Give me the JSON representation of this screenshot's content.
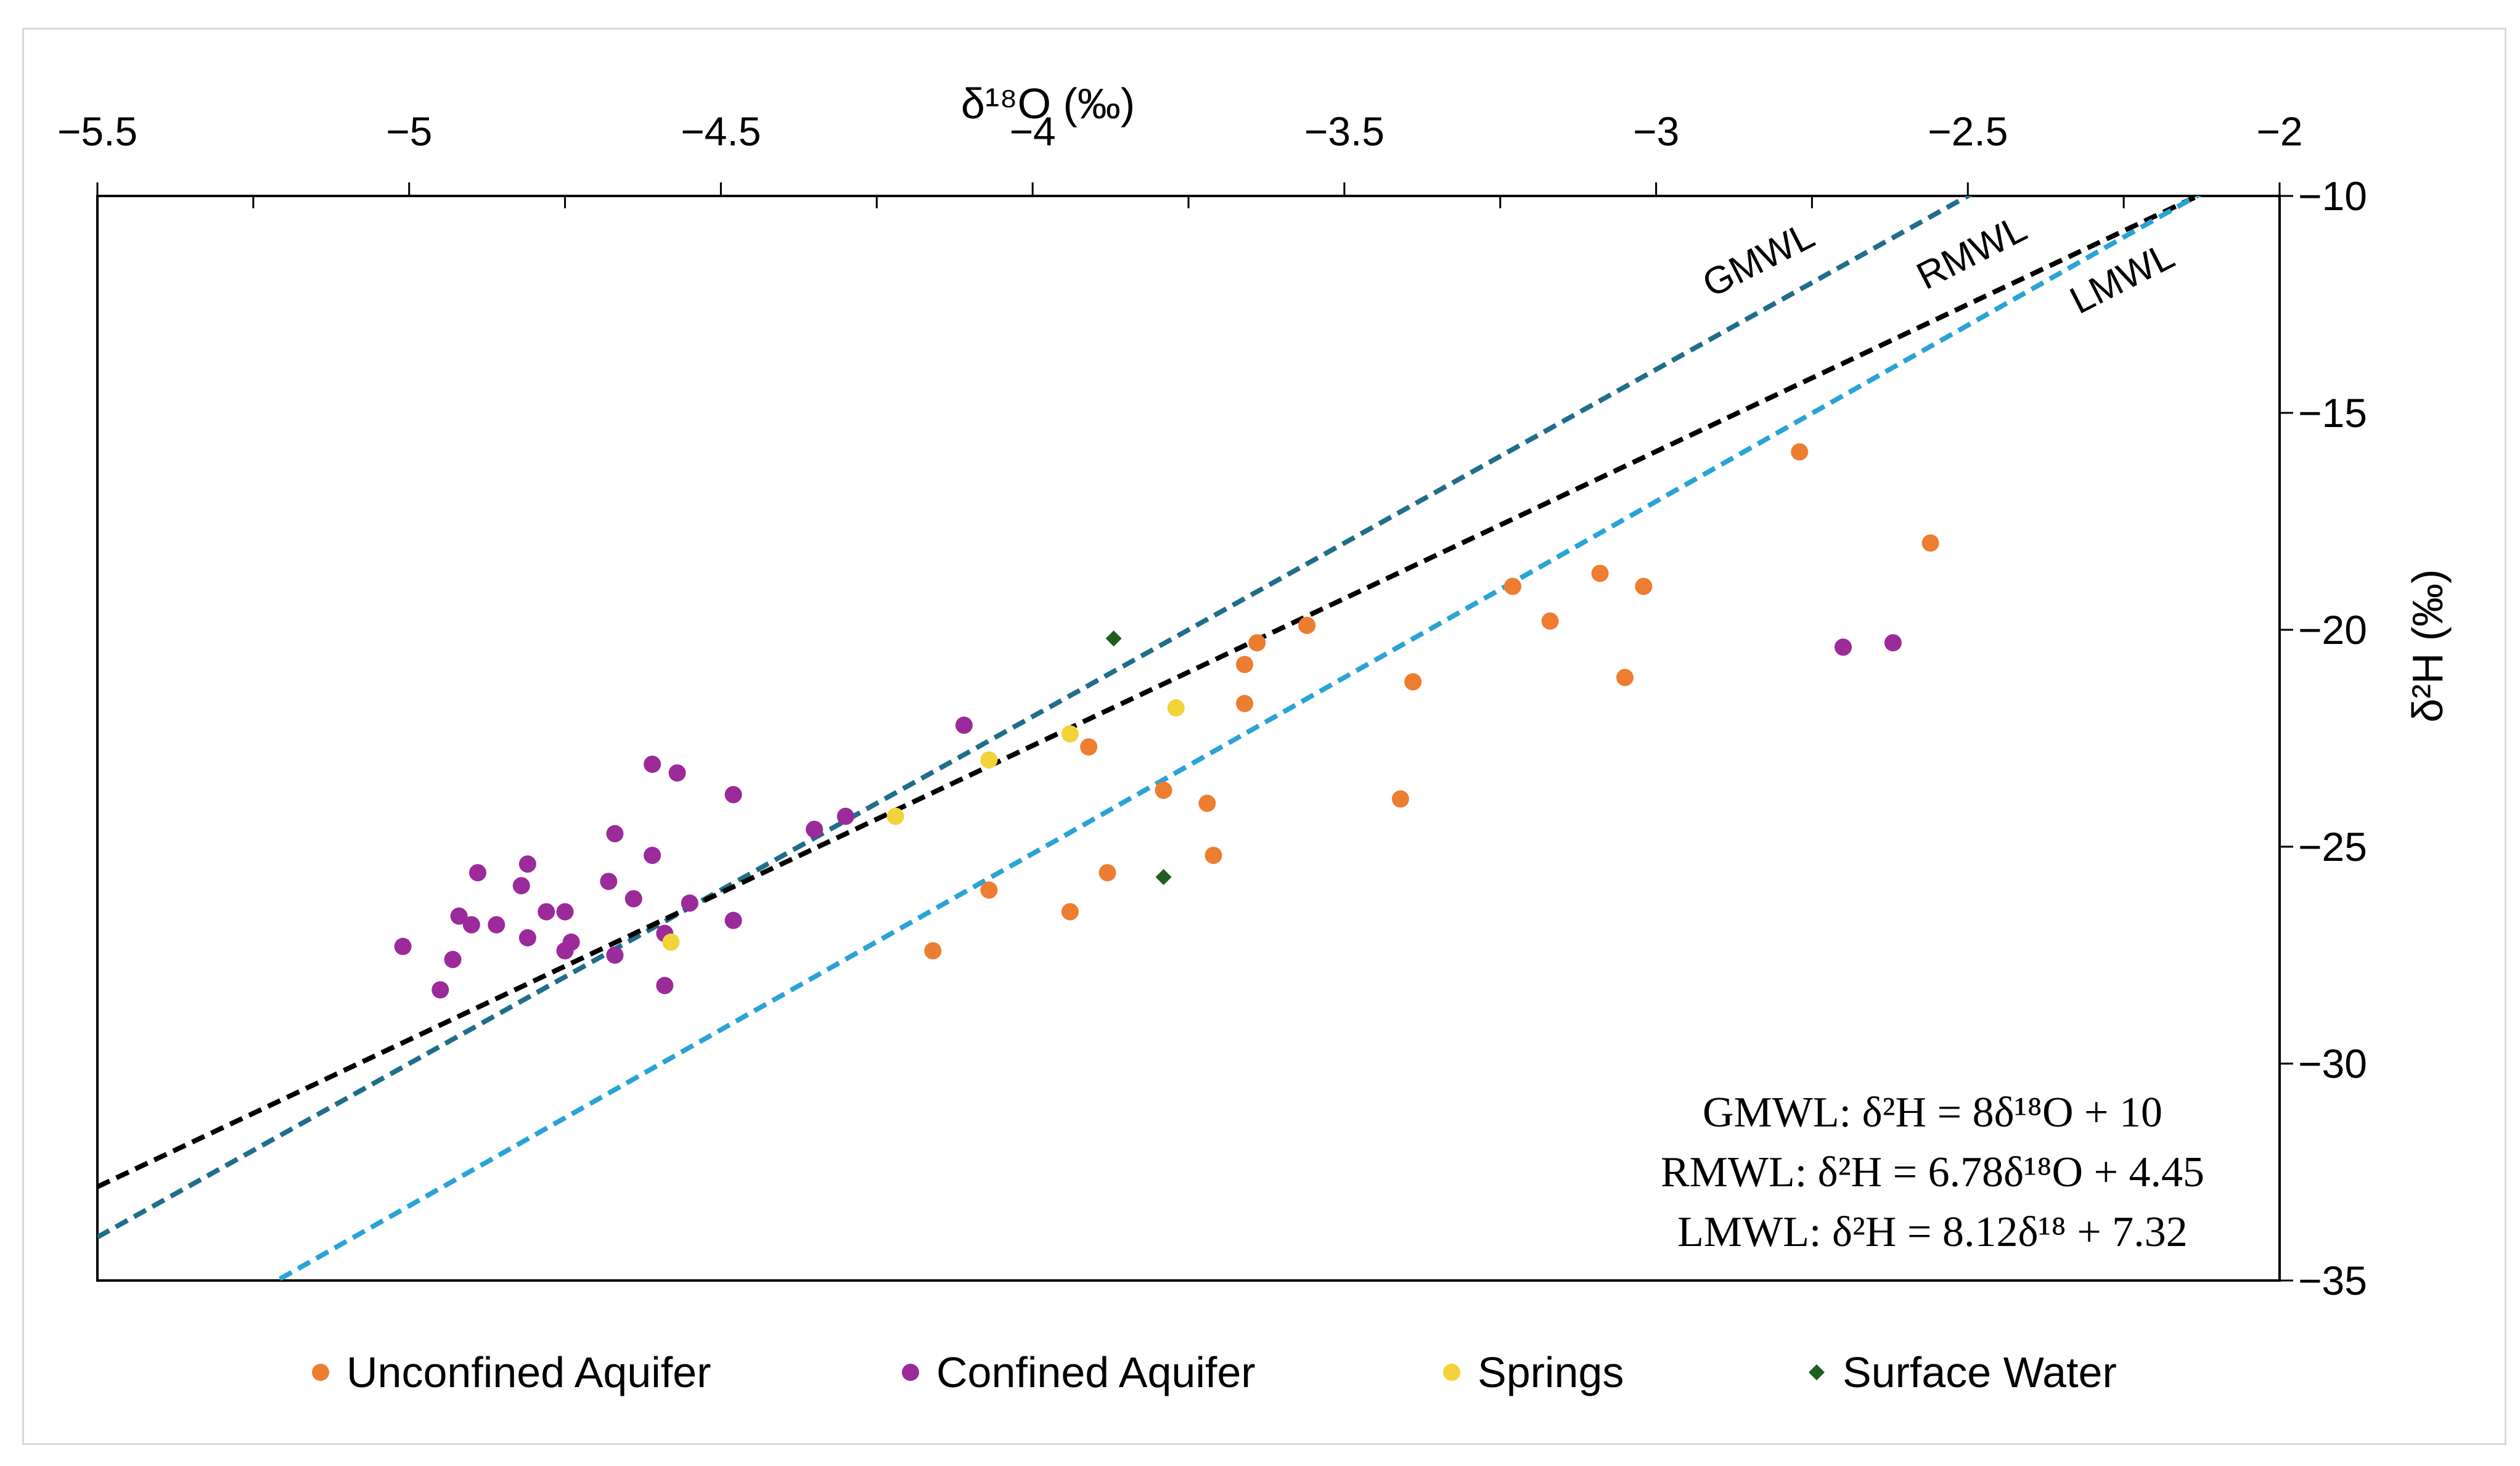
{
  "chart_data": {
    "type": "scatter",
    "xlabel": "δ¹⁸O (‰)",
    "ylabel": "δ²H (‰)",
    "xlim": [
      -5.5,
      -2
    ],
    "ylim": [
      -35,
      -10
    ],
    "xticks": [
      -5.5,
      -5,
      -4.5,
      -4,
      -3.5,
      -3,
      -2.5,
      -2
    ],
    "yticks": [
      -10,
      -15,
      -20,
      -25,
      -30,
      -35
    ],
    "xtick_labels": [
      "−5.5",
      "−5",
      "−4.5",
      "−4",
      "−3.5",
      "−3",
      "−2.5",
      "−2"
    ],
    "ytick_labels": [
      "−10",
      "−15",
      "−20",
      "−25",
      "−30",
      "−35"
    ],
    "x_axis_position": "top",
    "y_axis_position": "right",
    "grid": false,
    "lines": [
      {
        "name": "GMWL",
        "label": "GMWL",
        "slope": 8,
        "intercept": 10,
        "color": "#1f6e8c",
        "style": "dashed"
      },
      {
        "name": "RMWL",
        "label": "RMWL",
        "slope": 6.78,
        "intercept": 4.45,
        "color": "#000000",
        "style": "dashed"
      },
      {
        "name": "LMWL",
        "label": "LMWL",
        "slope": 8.12,
        "intercept": 7.32,
        "color": "#2aa3d6",
        "style": "dashed"
      }
    ],
    "equations": [
      "GMWL: δ²H = 8δ¹⁸O + 10",
      "RMWL: δ²H = 6.78δ¹⁸O + 4.45",
      "LMWL: δ²H = 8.12δ¹⁸ + 7.32"
    ],
    "series": [
      {
        "name": "Unconfined Aquifer",
        "color": "#ed7d31",
        "marker": "circle",
        "points": [
          [
            -2.77,
            -15.9
          ],
          [
            -2.56,
            -18.0
          ],
          [
            -3.23,
            -19.0
          ],
          [
            -3.09,
            -18.7
          ],
          [
            -3.02,
            -19.0
          ],
          [
            -3.17,
            -19.8
          ],
          [
            -3.56,
            -19.9
          ],
          [
            -3.64,
            -20.3
          ],
          [
            -3.66,
            -20.8
          ],
          [
            -3.66,
            -21.7
          ],
          [
            -3.39,
            -21.2
          ],
          [
            -3.05,
            -21.1
          ],
          [
            -3.91,
            -22.7
          ],
          [
            -3.79,
            -23.7
          ],
          [
            -3.72,
            -24.0
          ],
          [
            -3.41,
            -23.9
          ],
          [
            -3.71,
            -25.2
          ],
          [
            -3.88,
            -25.6
          ],
          [
            -4.07,
            -26.0
          ],
          [
            -3.94,
            -26.5
          ],
          [
            -4.16,
            -27.4
          ]
        ]
      },
      {
        "name": "Confined Aquifer",
        "color": "#9b2a9b",
        "marker": "circle",
        "points": [
          [
            -2.7,
            -20.4
          ],
          [
            -2.62,
            -20.3
          ],
          [
            -4.11,
            -22.2
          ],
          [
            -4.61,
            -23.1
          ],
          [
            -4.57,
            -23.3
          ],
          [
            -4.48,
            -23.8
          ],
          [
            -4.3,
            -24.3
          ],
          [
            -4.35,
            -24.6
          ],
          [
            -4.67,
            -24.7
          ],
          [
            -4.61,
            -25.2
          ],
          [
            -4.89,
            -25.6
          ],
          [
            -4.81,
            -25.4
          ],
          [
            -4.82,
            -25.9
          ],
          [
            -4.68,
            -25.8
          ],
          [
            -4.64,
            -26.2
          ],
          [
            -4.55,
            -26.3
          ],
          [
            -4.78,
            -26.5
          ],
          [
            -4.75,
            -26.5
          ],
          [
            -4.92,
            -26.6
          ],
          [
            -4.9,
            -26.8
          ],
          [
            -4.86,
            -26.8
          ],
          [
            -4.48,
            -26.7
          ],
          [
            -4.59,
            -27.0
          ],
          [
            -4.81,
            -27.1
          ],
          [
            -4.74,
            -27.2
          ],
          [
            -4.75,
            -27.4
          ],
          [
            -4.67,
            -27.5
          ],
          [
            -5.01,
            -27.3
          ],
          [
            -4.93,
            -27.6
          ],
          [
            -4.95,
            -28.3
          ],
          [
            -4.59,
            -28.2
          ]
        ]
      },
      {
        "name": "Springs",
        "color": "#f2d33a",
        "marker": "circle",
        "points": [
          [
            -3.77,
            -21.8
          ],
          [
            -3.94,
            -22.4
          ],
          [
            -4.07,
            -23.0
          ],
          [
            -4.22,
            -24.3
          ],
          [
            -4.58,
            -27.2
          ]
        ]
      },
      {
        "name": "Surface Water",
        "color": "#1e5e1e",
        "marker": "diamond",
        "points": [
          [
            -3.87,
            -20.2
          ],
          [
            -3.79,
            -25.7
          ]
        ]
      }
    ],
    "legend": [
      "Unconfined Aquifer",
      "Confined Aquifer",
      "Springs",
      "Surface Water"
    ],
    "legend_placement": "bottom"
  }
}
